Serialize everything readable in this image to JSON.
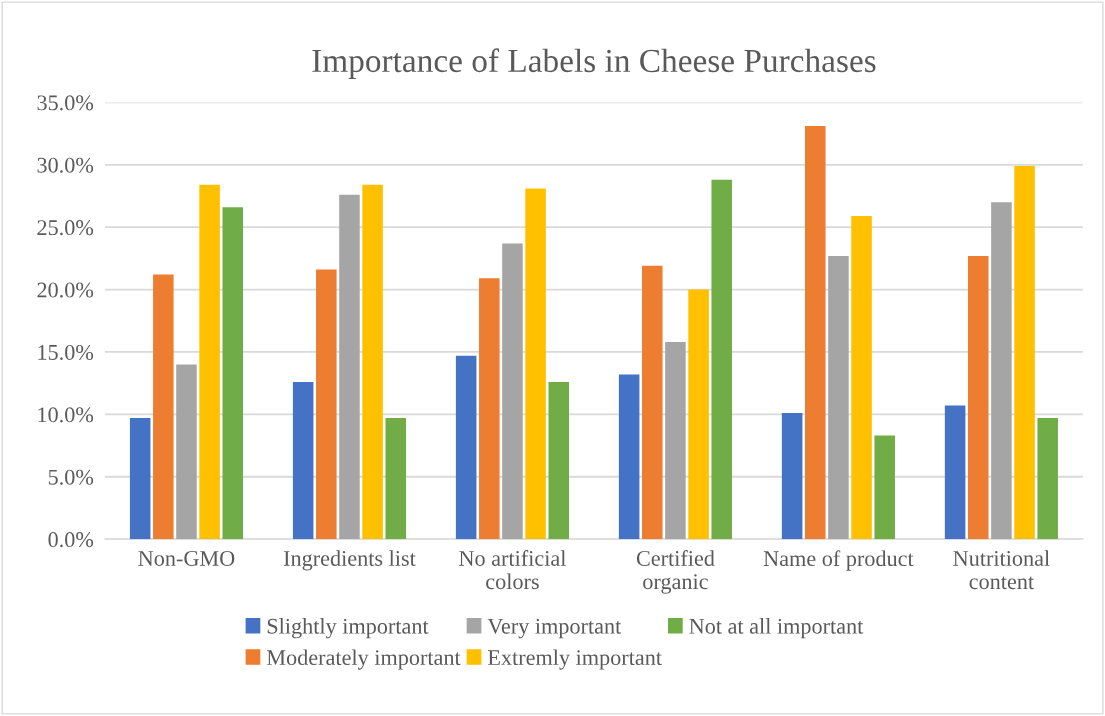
{
  "chart_data": {
    "type": "bar",
    "title": "Importance of Labels in Cheese Purchases",
    "categories": [
      "Non-GMO",
      "Ingredients list",
      "No artificial\ncolors",
      "Certified\norganic",
      "Name of product",
      "Nutritional\ncontent"
    ],
    "series": [
      {
        "name": "Slightly important",
        "color": "#4472c4",
        "values": [
          9.7,
          12.6,
          14.7,
          13.2,
          10.1,
          10.7
        ]
      },
      {
        "name": "Moderately important",
        "color": "#ed7d31",
        "values": [
          21.2,
          21.6,
          20.9,
          21.9,
          33.1,
          22.7
        ]
      },
      {
        "name": "Very important",
        "color": "#a5a5a5",
        "values": [
          14.0,
          27.6,
          23.7,
          15.8,
          22.7,
          27.0
        ]
      },
      {
        "name": "Extremly important",
        "color": "#ffc000",
        "values": [
          28.4,
          28.4,
          28.1,
          20.0,
          25.9,
          29.9
        ]
      },
      {
        "name": "Not at all important",
        "color": "#70ad47",
        "values": [
          26.6,
          9.7,
          12.6,
          28.8,
          8.3,
          9.7
        ]
      }
    ],
    "ylim": [
      0,
      35
    ],
    "yticks": [
      {
        "value": 0,
        "label": "0.0%"
      },
      {
        "value": 5,
        "label": "5.0%"
      },
      {
        "value": 10,
        "label": "10.0%"
      },
      {
        "value": 15,
        "label": "15.0%"
      },
      {
        "value": 20,
        "label": "20.0%"
      },
      {
        "value": 25,
        "label": "25.0%"
      },
      {
        "value": 30,
        "label": "30.0%"
      },
      {
        "value": 35,
        "label": "35.0%"
      }
    ],
    "grid": "y",
    "legend": "bottom"
  }
}
